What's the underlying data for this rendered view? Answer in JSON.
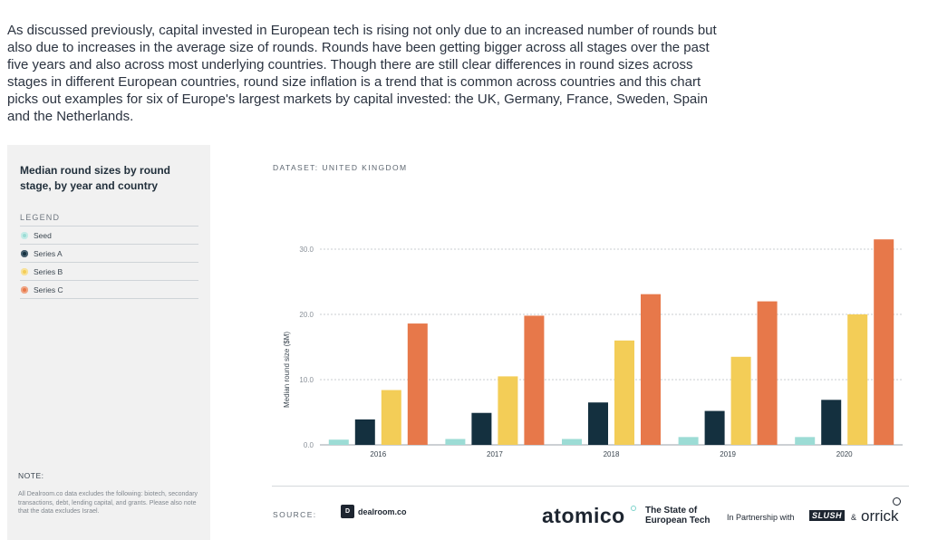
{
  "intro_text": "As discussed previously, capital invested in European tech is rising not only due to an increased number of rounds but also due to increases in the average size of rounds. Rounds have been getting bigger across all stages over the past five years and also across most underlying countries. Though there are still clear differences in round sizes across stages in different European countries, round size inflation is a trend that is common across countries and this chart picks out examples for six of Europe's largest markets by capital invested: the UK, Germany, France, Sweden, Spain and the Netherlands.",
  "panel": {
    "title": "Median round sizes by round stage, by year and country",
    "legend_heading": "LEGEND",
    "legend": [
      {
        "label": "Seed",
        "color": "#9cdcd5",
        "icon": "seed-dot-icon"
      },
      {
        "label": "Series A",
        "color": "#14303f",
        "icon": "series-a-dot-icon"
      },
      {
        "label": "Series B",
        "color": "#f3cd57",
        "icon": "series-b-dot-icon"
      },
      {
        "label": "Series C",
        "color": "#e7784a",
        "icon": "series-c-dot-icon"
      }
    ],
    "note_heading": "NOTE:",
    "note_text": "All Dealroom.co data excludes the following: biotech, secondary transactions, debt, lending capital, and grants. Please also note that the data excludes Israel."
  },
  "dataset_label": "DATASET: UNITED KINGDOM",
  "chart_data": {
    "type": "bar",
    "categories": [
      "2016",
      "2017",
      "2018",
      "2019",
      "2020"
    ],
    "series": [
      {
        "name": "Seed",
        "color": "#9cdcd5",
        "values": [
          0.8,
          0.9,
          0.9,
          1.2,
          1.2
        ]
      },
      {
        "name": "Series A",
        "color": "#14303f",
        "values": [
          3.9,
          4.9,
          6.5,
          5.2,
          6.9
        ]
      },
      {
        "name": "Series B",
        "color": "#f3cd57",
        "values": [
          8.4,
          10.5,
          16.0,
          13.5,
          20.0
        ]
      },
      {
        "name": "Series C",
        "color": "#e7784a",
        "values": [
          18.6,
          19.8,
          23.1,
          22.0,
          31.5
        ]
      }
    ],
    "yticks": [
      "0.0",
      "10.0",
      "20.0",
      "30.0"
    ],
    "ylabel": "Median round size ($M)",
    "xlabel": "",
    "ylim": [
      0,
      32
    ],
    "grid": true
  },
  "footer": {
    "source_label": "SOURCE:",
    "dealroom_mark": "D",
    "dealroom_text": "dealroom.co",
    "atomico_text": "atomico",
    "state_line1": "The State of",
    "state_line2": "European Tech",
    "partnership_text": "In Partnership with",
    "slush_text": "SLUSH",
    "amp_text": "&",
    "orrick_text": "orrick"
  }
}
